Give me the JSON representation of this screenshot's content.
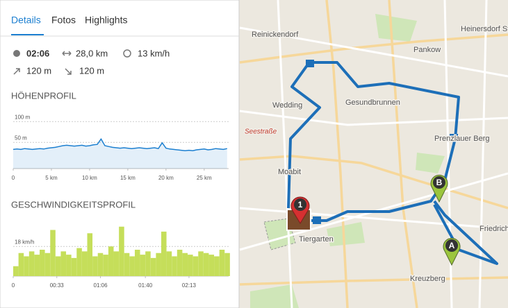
{
  "tabs": [
    "Details",
    "Fotos",
    "Highlights"
  ],
  "stats": {
    "duration": "02:06",
    "distance": "28,0 km",
    "speed": "13 km/h",
    "ascent": "120 m",
    "descent": "120 m"
  },
  "chart_data": [
    {
      "type": "area",
      "title": "HÖHENPROFIL",
      "color": "#1c7fd0",
      "x": [
        0,
        0.5,
        1,
        1.5,
        2,
        2.5,
        3,
        3.5,
        4,
        4.5,
        5,
        5.5,
        6,
        6.5,
        7,
        7.5,
        8,
        8.5,
        9,
        9.5,
        10,
        10.5,
        11,
        11.5,
        12,
        12.5,
        13,
        13.5,
        14,
        14.5,
        15,
        15.5,
        16,
        16.5,
        17,
        17.5,
        18,
        18.5,
        19,
        19.5,
        20,
        20.5,
        21,
        21.5,
        22,
        22.5,
        23,
        23.5,
        24,
        24.5,
        25,
        25.5,
        26,
        26.5,
        27,
        27.5,
        28
      ],
      "values": [
        33,
        34,
        33,
        35,
        34,
        33,
        34,
        35,
        34,
        36,
        37,
        38,
        40,
        42,
        43,
        42,
        41,
        42,
        43,
        41,
        42,
        44,
        45,
        58,
        42,
        40,
        38,
        37,
        36,
        37,
        36,
        35,
        36,
        37,
        36,
        35,
        36,
        37,
        35,
        49,
        36,
        34,
        33,
        32,
        31,
        30,
        31,
        30,
        32,
        33,
        34,
        32,
        33,
        35,
        34,
        33,
        35
      ],
      "xlim": [
        0,
        28.2
      ],
      "ylim": [
        -13,
        117
      ],
      "xticks": [
        0,
        {
          "value": 5,
          "label": "5 km"
        },
        {
          "value": 10,
          "label": "10 km"
        },
        {
          "value": 15,
          "label": "15 km"
        },
        {
          "value": 20,
          "label": "20 km"
        },
        {
          "value": 25,
          "label": "25 km"
        }
      ],
      "yticks": [
        {
          "value": 50,
          "label": "50 m"
        },
        {
          "value": 100,
          "label": "100 m"
        }
      ]
    },
    {
      "type": "bar",
      "title": "GESCHWINDIGKEITSPROFIL",
      "color": "#c5de5a",
      "x": [
        0,
        4,
        8,
        12,
        16,
        20,
        24,
        28,
        32,
        36,
        40,
        44,
        48,
        52,
        56,
        60,
        64,
        68,
        72,
        76,
        80,
        84,
        88,
        92,
        96,
        100,
        104,
        108,
        112,
        116,
        120,
        124,
        128,
        132,
        136,
        140,
        144,
        148,
        152,
        156,
        160
      ],
      "values": [
        6,
        14,
        12,
        15,
        13,
        16,
        14,
        28,
        12,
        15,
        13,
        11,
        17,
        15,
        26,
        12,
        14,
        13,
        18,
        15,
        30,
        14,
        12,
        16,
        13,
        15,
        11,
        14,
        27,
        15,
        12,
        16,
        14,
        13,
        12,
        15,
        14,
        13,
        12,
        16,
        14
      ],
      "xlim": [
        0,
        163
      ],
      "ylim": [
        0,
        32
      ],
      "xticks": [
        0,
        {
          "value": 33,
          "label": "00:33"
        },
        {
          "value": 66,
          "label": "01:06"
        },
        {
          "value": 100,
          "label": "01:40"
        },
        {
          "value": 133,
          "label": "02:13"
        }
      ],
      "yticks": [
        {
          "value": 18,
          "label": "18 km/h"
        }
      ]
    }
  ],
  "map": {
    "labels": [
      "Reinickendorf",
      "Pankow",
      "Heinersdorf St",
      "Wedding",
      "Gesundbrunnen",
      "Prenzlauer Berg",
      "Moabit",
      "Tiergarten",
      "Friedrich",
      "Kreuzberg",
      "Seestraße"
    ],
    "markers": [
      "A",
      "B",
      "1"
    ]
  }
}
